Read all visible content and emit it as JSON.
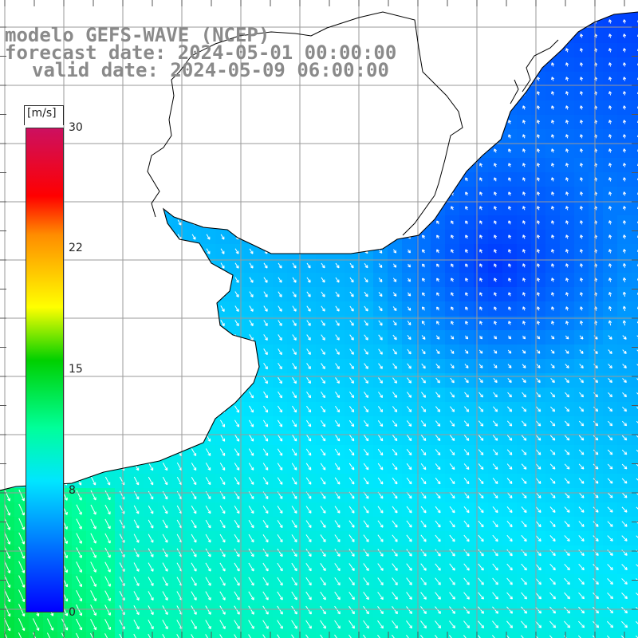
{
  "title": {
    "line1": "modelo GEFS-WAVE (NCEP)",
    "line2": "forecast date: 2024-05-01 00:00:00",
    "line3": "valid date: 2024-05-09 06:00:00"
  },
  "colorbar": {
    "unit": "[m/s]",
    "ticks": [
      "30",
      "22",
      "15",
      "8",
      "0"
    ],
    "colors": [
      "#0000ff",
      "#00e6ff",
      "#00ff9a",
      "#00d000",
      "#ffff00",
      "#ff8c00",
      "#ff0000",
      "#cc1060"
    ]
  },
  "map": {
    "land_color": "#ffffff",
    "grid_color": "#9a9a9a",
    "coast_color": "#000000",
    "arrow_color": "#ffffff"
  }
}
